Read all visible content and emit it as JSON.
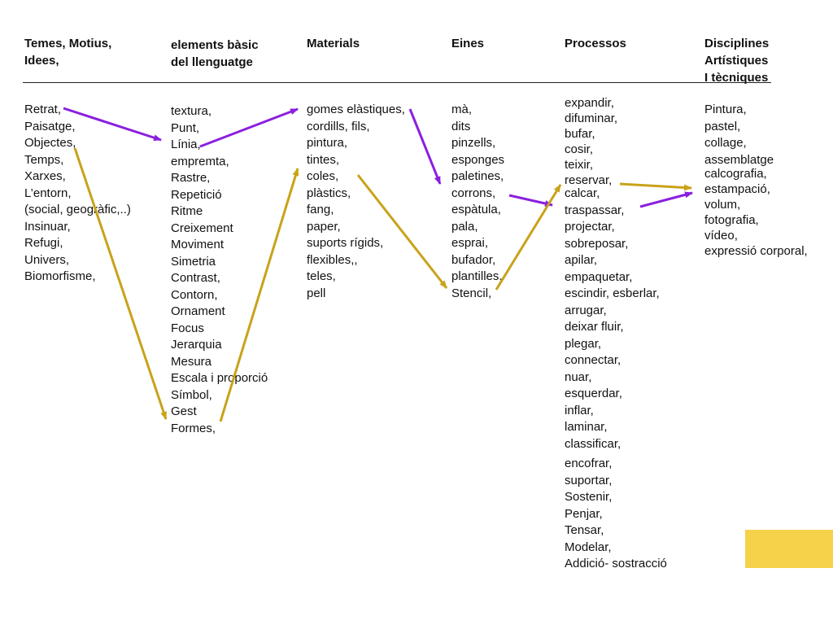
{
  "colors": {
    "purple_arrow": "#8a1fe0",
    "gold_arrow": "#c9a21a",
    "yellow_box": "#f6d24b",
    "text": "#111111"
  },
  "headers": {
    "themes": [
      "Temes, Motius,",
      "Idees,"
    ],
    "elements": [
      "elements bàsic",
      "del llenguatge"
    ],
    "materials": [
      "Materials"
    ],
    "tools": [
      "Eines"
    ],
    "processes": [
      "Processos"
    ],
    "disciplines": [
      "Disciplines",
      "Artístiques",
      "I tècniques"
    ]
  },
  "columns": {
    "themes": [
      "Retrat,",
      "Paisatge,",
      "Objectes,",
      "Temps,",
      "Xarxes,",
      "L’entorn,",
      "(social, geogràfic,..)",
      "Insinuar,",
      "Refugi,",
      "Univers,",
      "Biomorfisme,"
    ],
    "elements": [
      "textura,",
      "Punt,",
      "Línia,",
      "empremta,",
      "Rastre,",
      "Repetició",
      "Ritme",
      "Creixement",
      "Moviment",
      "Simetria",
      "Contrast,",
      "Contorn,",
      "Ornament",
      "Focus",
      "Jerarquia",
      "Mesura",
      "Escala i proporció",
      "Símbol,",
      "Gest",
      "Formes,"
    ],
    "materials": [
      "gomes elàstiques,",
      "cordills, fils,",
      "pintura,",
      "tintes,",
      "coles,",
      "plàstics,",
      "fang,",
      "paper,",
      "suports rígids,",
      "flexibles,,",
      "teles,",
      "pell"
    ],
    "tools": [
      "mà,",
      "dits",
      "pinzells,",
      "esponges",
      "paletines,",
      "corrons,",
      "espàtula,",
      "pala,",
      "esprai,",
      "bufador,",
      "plantilles,",
      "Stencil,"
    ],
    "processes_top": [
      "expandir,",
      "difuminar,",
      "bufar,",
      "cosir,",
      "teixir,",
      "reservar,"
    ],
    "processes_main": [
      "calcar,",
      "traspassar,",
      "projectar,",
      "sobreposar,",
      "apilar,",
      "empaquetar,",
      "escindir, esberlar,",
      "arrugar,",
      "deixar fluir,",
      "plegar,",
      "connectar,",
      "nuar,",
      "esquerdar,",
      "inflar,",
      "laminar,",
      "classificar,"
    ],
    "processes_bottom": [
      "encofrar,",
      "suportar,",
      "Sostenir,",
      "Penjar,",
      "Tensar,",
      "Modelar,",
      "Addició- sostracció"
    ],
    "disciplines_top": [
      "Pintura,",
      "pastel,",
      "collage,",
      "assemblatge"
    ],
    "disciplines_bottom": [
      "calcografia,",
      "estampació,",
      "volum,",
      "fotografia,",
      "vídeo,",
      "expressió corporal,"
    ]
  }
}
